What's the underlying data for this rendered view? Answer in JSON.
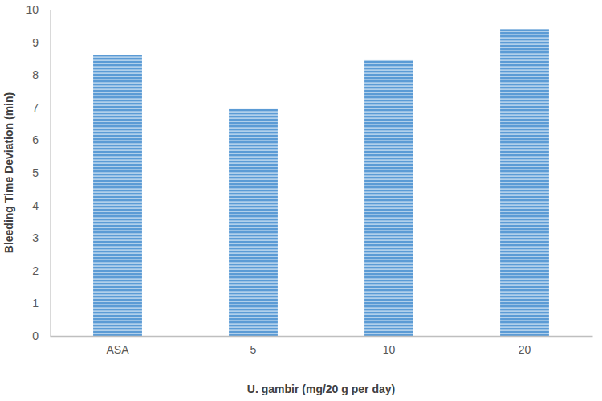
{
  "chart_data": {
    "type": "bar",
    "x_label": "U. gambir (mg/20 g per day)",
    "y_label": "Bleeding Time Deviation (min)",
    "categories": [
      "ASA",
      "5",
      "10",
      "20"
    ],
    "values": [
      8.6,
      6.95,
      8.45,
      9.4
    ],
    "color": "#5b9bd5",
    "ylim": [
      0,
      10
    ],
    "yticks": [
      0,
      1,
      2,
      3,
      4,
      5,
      6,
      7,
      8,
      9,
      10
    ],
    "grid": false
  }
}
